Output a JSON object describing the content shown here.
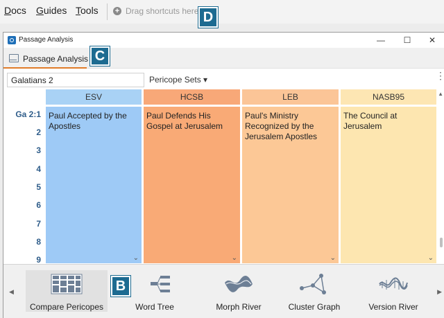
{
  "menubar": {
    "items": [
      {
        "underline": "D",
        "rest": "ocs"
      },
      {
        "underline": "G",
        "rest": "uides"
      },
      {
        "underline": "T",
        "rest": "ools"
      }
    ],
    "shortcuts_hint": "Drag shortcuts here"
  },
  "callouts": {
    "d": "D",
    "c": "C",
    "b": "B"
  },
  "window": {
    "title": "Passage Analysis",
    "controls": {
      "minimize": "—",
      "maximize": "☐",
      "close": "✕"
    }
  },
  "panel": {
    "tab_label": "Passage Analysis",
    "reference_value": "Galatians 2",
    "pericope_sets_label": "Pericope Sets ▾"
  },
  "grid": {
    "verse_labels": [
      "Ga 2:1",
      "2",
      "3",
      "4",
      "5",
      "6",
      "7",
      "8",
      "9"
    ],
    "columns": [
      {
        "header": "ESV",
        "text": "Paul Accepted by the Apostles",
        "head_color": "#a9d2f5",
        "body_color": "#9ecaf6"
      },
      {
        "header": "HCSB",
        "text": "Paul Defends His Gospel at Jerusalem",
        "head_color": "#f8a878",
        "body_color": "#f9aa76"
      },
      {
        "header": "LEB",
        "text": "Paul's Ministry Recognized by the Jerusalem Apostles",
        "head_color": "#fbc597",
        "body_color": "#fcc896"
      },
      {
        "header": "NASB95",
        "text": "The Council at Jerusalem",
        "head_color": "#fde6b3",
        "body_color": "#fde6b0"
      }
    ]
  },
  "chooser": {
    "items": [
      {
        "label": "Compare Pericopes",
        "icon": "compare-pericopes-icon",
        "selected": true
      },
      {
        "label": "Word Tree",
        "icon": "word-tree-icon",
        "selected": false
      },
      {
        "label": "Morph River",
        "icon": "morph-river-icon",
        "selected": false
      },
      {
        "label": "Cluster Graph",
        "icon": "cluster-graph-icon",
        "selected": false
      },
      {
        "label": "Version River",
        "icon": "version-river-icon",
        "selected": false
      }
    ]
  },
  "colors": {
    "accent": "#e07b28",
    "badge": "#1d6b91",
    "verse_label": "#2f5d8a"
  }
}
